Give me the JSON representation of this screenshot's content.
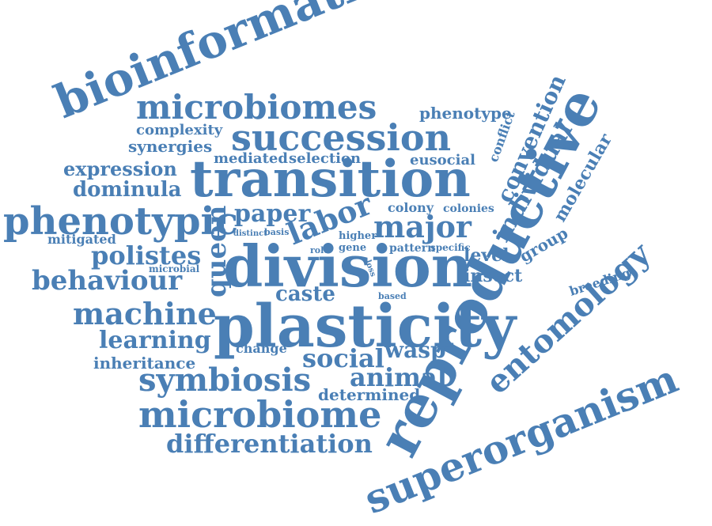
{
  "colors": {
    "word": "#4a7fb5",
    "background": "#ffffff"
  },
  "words": [
    "bioinformatics",
    "microbiomes",
    "phenotype",
    "complexity",
    "succession",
    "synergies",
    "conflict",
    "convention",
    "mediated",
    "selection",
    "eusocial",
    "expression",
    "transition",
    "individual",
    "molecular",
    "dominula",
    "reproductive",
    "phenotypic",
    "queen",
    "paper",
    "labor",
    "major",
    "colony",
    "colonies",
    "mitigated",
    "distinct",
    "basis",
    "higher",
    "gene",
    "role",
    "pattern",
    "specific",
    "polistes",
    "level",
    "group",
    "microbial",
    "division",
    "loss",
    "insect",
    "behaviour",
    "breeding",
    "entomology",
    "caste",
    "based",
    "machine",
    "plasticity",
    "learning",
    "change",
    "inheritance",
    "social",
    "wasp",
    "symbiosis",
    "animal",
    "determined",
    "microbiome",
    "superorganism",
    "differentiation"
  ]
}
